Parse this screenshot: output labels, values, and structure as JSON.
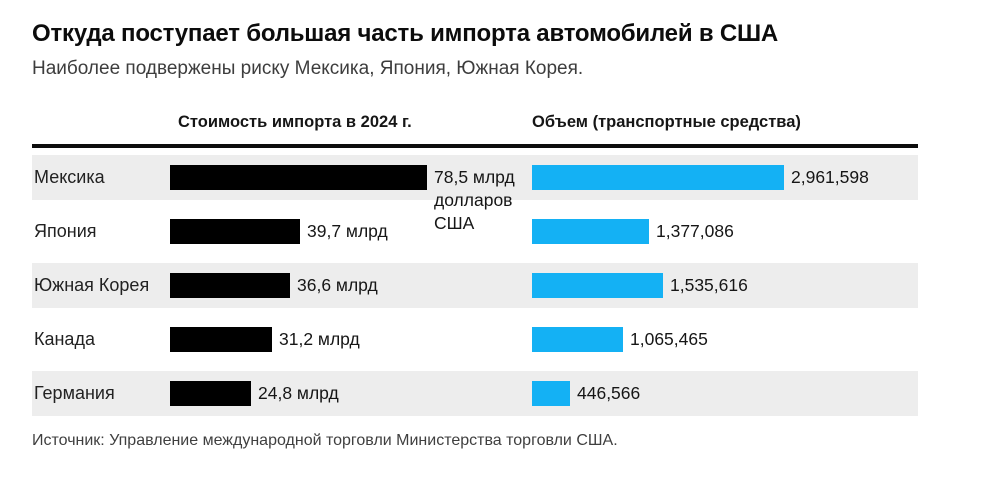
{
  "page": {
    "title": "Откуда поступает большая часть импорта автомобилей в США",
    "subtitle": "Наиболее подвержены риску Мексика, Япония, Южная Корея.",
    "source": "Источник: Управление международной торговли Министерства торговли США."
  },
  "header": {
    "value_col_prefix": "Стоимость импорта в ",
    "value_col_year": "2024 г.",
    "volume_col": "Объем (транспортные средства)"
  },
  "colors": {
    "value_bar": "#000000",
    "volume_bar": "#14b1f4",
    "row_stripe": "#ededed"
  },
  "chart_data": {
    "type": "bar",
    "orientation": "horizontal",
    "title": "Откуда поступает большая часть импорта автомобилей в США",
    "subtitle": "Наиболее подвержены риску Мексика, Япония, Южная Корея.",
    "categories": [
      "Мексика",
      "Япония",
      "Южная Корея",
      "Канада",
      "Германия"
    ],
    "series": [
      {
        "name": "Стоимость импорта в 2024 г. (млрд долларов США)",
        "values": [
          78.5,
          39.7,
          36.6,
          31.2,
          24.8
        ],
        "labels": [
          "78,5 млрд долларов США",
          "39,7 млрд",
          "36,6 млрд",
          "31,2 млрд",
          "24,8 млрд"
        ],
        "max": 78.5
      },
      {
        "name": "Объем (транспортные средства)",
        "values": [
          2961598,
          1377086,
          1535616,
          1065465,
          446566
        ],
        "labels": [
          "2,961,598",
          "1,377,086",
          "1,535,616",
          "1,065,465",
          "446,566"
        ],
        "max": 2961598
      }
    ],
    "legend": "none",
    "grid": false,
    "source": "Источник: Управление международной торговли Министерства торговли США."
  }
}
